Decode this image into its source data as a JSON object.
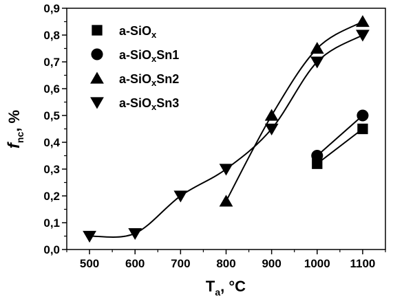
{
  "chart_data": {
    "type": "scatter",
    "xlabel": {
      "main": "T",
      "sub": "a",
      "tail": ", °C"
    },
    "ylabel": {
      "main": "f",
      "sub": "nc",
      "tail": ", %"
    },
    "xlim": [
      450,
      1150
    ],
    "ylim": [
      0.0,
      0.9
    ],
    "xticks": [
      500,
      600,
      700,
      800,
      900,
      1000,
      1100
    ],
    "yticks": [
      "0,0",
      "0,1",
      "0,2",
      "0,3",
      "0,4",
      "0,5",
      "0,6",
      "0,7",
      "0,8",
      "0,9"
    ],
    "grid": false,
    "legend_position": "top-left",
    "series": [
      {
        "name": "a-SiOx",
        "name_main": "a-SiO",
        "name_sub": "x",
        "name_tail": "",
        "marker": "square",
        "points": [
          [
            1000,
            0.32
          ],
          [
            1100,
            0.45
          ]
        ],
        "line": "straight"
      },
      {
        "name": "a-SiOxSn1",
        "name_main": "a-SiO",
        "name_sub": "x",
        "name_tail": "Sn1",
        "marker": "circle",
        "points": [
          [
            1000,
            0.35
          ],
          [
            1100,
            0.5
          ]
        ],
        "line": "straight"
      },
      {
        "name": "a-SiOxSn2",
        "name_main": "a-SiO",
        "name_sub": "x",
        "name_tail": "Sn2",
        "marker": "triangle-up",
        "points": [
          [
            800,
            0.18
          ],
          [
            900,
            0.5
          ],
          [
            1000,
            0.75
          ],
          [
            1100,
            0.85
          ]
        ],
        "line": "smooth"
      },
      {
        "name": "a-SiOxSn3",
        "name_main": "a-SiO",
        "name_sub": "x",
        "name_tail": "Sn3",
        "marker": "triangle-down",
        "points": [
          [
            500,
            0.05
          ],
          [
            600,
            0.06
          ],
          [
            700,
            0.2
          ],
          [
            800,
            0.3
          ],
          [
            900,
            0.45
          ],
          [
            1000,
            0.7
          ],
          [
            1100,
            0.8
          ]
        ],
        "line": "smooth"
      }
    ]
  }
}
